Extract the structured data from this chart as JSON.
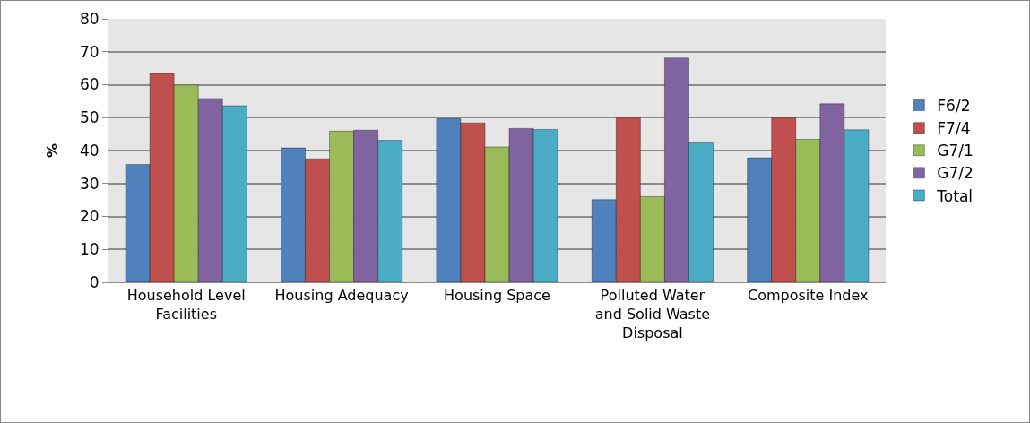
{
  "chart_data": {
    "type": "bar",
    "ylabel": "%",
    "categories": [
      "Household Level Facilities",
      "Housing Adequacy",
      "Housing Space",
      "Polluted Water and Solid Waste Disposal",
      "Composite Index"
    ],
    "series": [
      {
        "name": "F6/2",
        "color": "#4f81bd",
        "values": [
          35.8,
          40.8,
          49.7,
          25.1,
          37.8
        ]
      },
      {
        "name": "F7/4",
        "color": "#c0504d",
        "values": [
          63.4,
          37.5,
          48.4,
          50.0,
          49.9
        ]
      },
      {
        "name": "G7/1",
        "color": "#9bbb59",
        "values": [
          59.9,
          45.9,
          41.1,
          26.0,
          43.4
        ]
      },
      {
        "name": "G7/2",
        "color": "#8064a2",
        "values": [
          55.8,
          46.2,
          46.7,
          68.1,
          54.2
        ]
      },
      {
        "name": "Total",
        "color": "#4bacc6",
        "values": [
          53.6,
          43.1,
          46.4,
          42.3,
          46.3
        ]
      }
    ],
    "ylim": [
      0,
      80
    ],
    "yticks": [
      0,
      10,
      20,
      30,
      40,
      50,
      60,
      70,
      80
    ],
    "grid": "y",
    "legend": "right"
  }
}
